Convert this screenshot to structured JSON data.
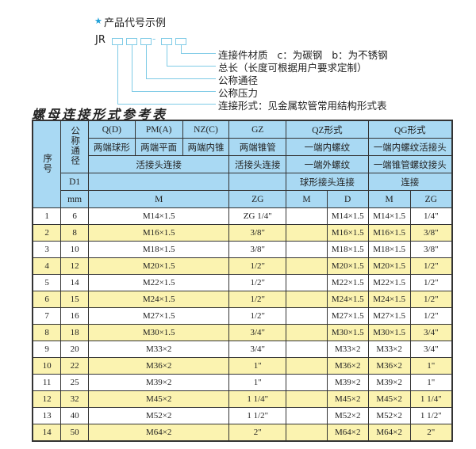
{
  "example": {
    "title": "产品代号示例",
    "code_prefix": "JR",
    "dash": "-",
    "icon": "star-icon",
    "star_color": "#1ea0d8",
    "labels": [
      "连接件材质   c：为碳钢   b：为不锈钢",
      "总长（长度可根据用户要求定制）",
      "公称通径",
      "公称压力",
      "连接形式：见金属软管常用结构形式表"
    ]
  },
  "title": "螺母连接形式参考表",
  "header": {
    "seq": "序号",
    "dn": "公称通径",
    "q": "Q(D)",
    "pm": "PM(A)",
    "nz": "NZ(C)",
    "gz": "GZ",
    "qz": "QZ形式",
    "qg": "QG形式",
    "q2": "两端球形",
    "pm2": "两端平面",
    "nz2": "两端内锥",
    "gz2": "两端锥管",
    "qz2": "一端内螺纹",
    "qg2": "一端内螺纹活接头",
    "conn": "活接头连接",
    "gz3": "活接头连接",
    "qz3": "一端外螺纹",
    "qg3": "一端锥管螺纹接头",
    "d1": "D1",
    "qz4": "球形接头连接",
    "qg4": "连接",
    "mm": "mm",
    "m": "M",
    "zg": "ZG",
    "qzm": "M",
    "qzd": "D",
    "qgm": "M",
    "qgzg": "ZG"
  },
  "colors": {
    "header_bg": "#a9d9f3",
    "stripe_bg": "#fbf3b0"
  },
  "rows": [
    [
      "1",
      "6",
      "M14×1.5",
      "ZG 1/4\"",
      "",
      "M14×1.5",
      "M14×1.5",
      "1/4\""
    ],
    [
      "2",
      "8",
      "M16×1.5",
      "3/8\"",
      "",
      "M16×1.5",
      "M16×1.5",
      "3/8\""
    ],
    [
      "3",
      "10",
      "M18×1.5",
      "3/8\"",
      "",
      "M18×1.5",
      "M18×1.5",
      "3/8\""
    ],
    [
      "4",
      "12",
      "M20×1.5",
      "1/2\"",
      "",
      "M20×1.5",
      "M20×1.5",
      "1/2\""
    ],
    [
      "5",
      "14",
      "M22×1.5",
      "1/2\"",
      "",
      "M22×1.5",
      "M22×1.5",
      "1/2\""
    ],
    [
      "6",
      "15",
      "M24×1.5",
      "1/2\"",
      "",
      "M24×1.5",
      "M24×1.5",
      "1/2\""
    ],
    [
      "7",
      "16",
      "M27×1.5",
      "1/2\"",
      "",
      "M27×1.5",
      "M27×1.5",
      "1/2\""
    ],
    [
      "8",
      "18",
      "M30×1.5",
      "3/4\"",
      "",
      "M30×1.5",
      "M30×1.5",
      "3/4\""
    ],
    [
      "9",
      "20",
      "M33×2",
      "3/4\"",
      "",
      "M33×2",
      "M33×2",
      "3/4\""
    ],
    [
      "10",
      "22",
      "M36×2",
      "1\"",
      "",
      "M36×2",
      "M36×2",
      "1\""
    ],
    [
      "11",
      "25",
      "M39×2",
      "1\"",
      "",
      "M39×2",
      "M39×2",
      "1\""
    ],
    [
      "12",
      "32",
      "M45×2",
      "1 1/4\"",
      "",
      "M45×2",
      "M45×2",
      "1 1/4\""
    ],
    [
      "13",
      "40",
      "M52×2",
      "1 1/2\"",
      "",
      "M52×2",
      "M52×2",
      "1 1/2\""
    ],
    [
      "14",
      "50",
      "M64×2",
      "2\"",
      "",
      "M64×2",
      "M64×2",
      "2\""
    ]
  ]
}
